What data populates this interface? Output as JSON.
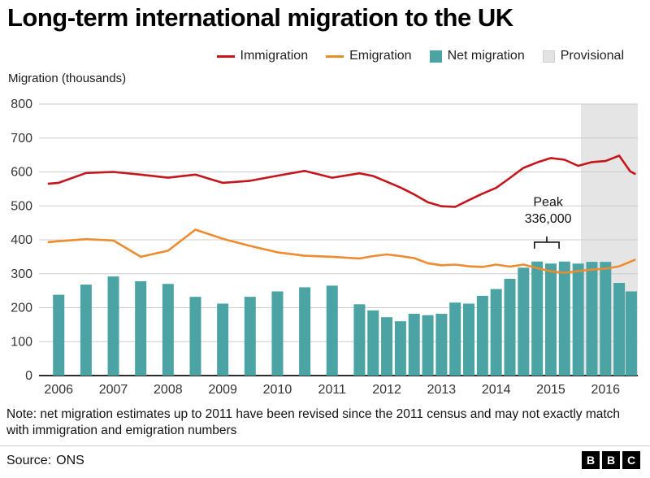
{
  "title": "Long-term international migration to the UK",
  "legend": {
    "items": [
      {
        "key": "immigration",
        "label": "Immigration",
        "swatch": "line",
        "color": "#c4161c"
      },
      {
        "key": "emigration",
        "label": "Emigration",
        "swatch": "line",
        "color": "#ee8b2e"
      },
      {
        "key": "net-migration",
        "label": "Net migration",
        "swatch": "box",
        "color": "#4ba3a3"
      },
      {
        "key": "provisional",
        "label": "Provisional",
        "swatch": "box",
        "color": "#e3e3e3"
      }
    ]
  },
  "chart_data": {
    "type": "combo",
    "title": "Long-term international migration to the UK",
    "ylabel": "Migration (thousands)",
    "xlabel": "",
    "ylim": [
      0,
      800
    ],
    "ytick_step": 100,
    "xticks": [
      2006,
      2007,
      2008,
      2009,
      2010,
      2011,
      2012,
      2013,
      2014,
      2015,
      2016
    ],
    "grid": true,
    "legend_position": "top",
    "provisional_start": 2015.55,
    "colors": {
      "grid": "#cccccc",
      "axis": "#2b2b2b",
      "provisional": "#e5e5e5"
    },
    "series": [
      {
        "name": "Net migration",
        "type": "bar",
        "color": "#4ba3a3",
        "points": [
          [
            2006.0,
            238
          ],
          [
            2006.5,
            268
          ],
          [
            2007.0,
            292
          ],
          [
            2007.5,
            278
          ],
          [
            2008.0,
            270
          ],
          [
            2008.5,
            232
          ],
          [
            2009.0,
            212
          ],
          [
            2009.5,
            232
          ],
          [
            2010.0,
            248
          ],
          [
            2010.5,
            260
          ],
          [
            2011.0,
            265
          ],
          [
            2011.5,
            210
          ],
          [
            2011.75,
            192
          ],
          [
            2012.0,
            172
          ],
          [
            2012.25,
            160
          ],
          [
            2012.5,
            182
          ],
          [
            2012.75,
            178
          ],
          [
            2013.0,
            182
          ],
          [
            2013.25,
            215
          ],
          [
            2013.5,
            212
          ],
          [
            2013.75,
            235
          ],
          [
            2014.0,
            255
          ],
          [
            2014.25,
            285
          ],
          [
            2014.5,
            318
          ],
          [
            2014.75,
            336
          ],
          [
            2015.0,
            330
          ],
          [
            2015.25,
            336
          ],
          [
            2015.5,
            330
          ],
          [
            2015.75,
            335
          ],
          [
            2016.0,
            335
          ],
          [
            2016.25,
            273
          ],
          [
            2016.47,
            248
          ]
        ]
      },
      {
        "name": "Immigration",
        "type": "line",
        "color": "#c4161c",
        "points": [
          [
            2005.8,
            565
          ],
          [
            2006.0,
            568
          ],
          [
            2006.5,
            597
          ],
          [
            2007.0,
            600
          ],
          [
            2007.5,
            592
          ],
          [
            2008.0,
            583
          ],
          [
            2008.5,
            592
          ],
          [
            2009.0,
            568
          ],
          [
            2009.5,
            574
          ],
          [
            2010.0,
            589
          ],
          [
            2010.5,
            603
          ],
          [
            2011.0,
            583
          ],
          [
            2011.5,
            596
          ],
          [
            2011.75,
            588
          ],
          [
            2012.0,
            571
          ],
          [
            2012.25,
            554
          ],
          [
            2012.5,
            534
          ],
          [
            2012.75,
            511
          ],
          [
            2013.0,
            499
          ],
          [
            2013.25,
            497
          ],
          [
            2013.5,
            517
          ],
          [
            2013.75,
            536
          ],
          [
            2014.0,
            553
          ],
          [
            2014.25,
            582
          ],
          [
            2014.5,
            612
          ],
          [
            2014.75,
            628
          ],
          [
            2015.0,
            641
          ],
          [
            2015.25,
            636
          ],
          [
            2015.5,
            618
          ],
          [
            2015.75,
            629
          ],
          [
            2016.0,
            632
          ],
          [
            2016.25,
            648
          ],
          [
            2016.45,
            602
          ],
          [
            2016.55,
            593
          ]
        ]
      },
      {
        "name": "Emigration",
        "type": "line",
        "color": "#ee8b2e",
        "points": [
          [
            2005.8,
            393
          ],
          [
            2006.0,
            396
          ],
          [
            2006.5,
            402
          ],
          [
            2007.0,
            398
          ],
          [
            2007.5,
            350
          ],
          [
            2008.0,
            368
          ],
          [
            2008.5,
            430
          ],
          [
            2009.0,
            403
          ],
          [
            2009.5,
            382
          ],
          [
            2010.0,
            363
          ],
          [
            2010.5,
            353
          ],
          [
            2011.0,
            350
          ],
          [
            2011.5,
            345
          ],
          [
            2011.75,
            352
          ],
          [
            2012.0,
            357
          ],
          [
            2012.25,
            352
          ],
          [
            2012.5,
            346
          ],
          [
            2012.75,
            331
          ],
          [
            2013.0,
            325
          ],
          [
            2013.25,
            327
          ],
          [
            2013.5,
            322
          ],
          [
            2013.75,
            320
          ],
          [
            2014.0,
            327
          ],
          [
            2014.25,
            321
          ],
          [
            2014.5,
            327
          ],
          [
            2014.75,
            317
          ],
          [
            2015.0,
            307
          ],
          [
            2015.25,
            303
          ],
          [
            2015.5,
            308
          ],
          [
            2015.75,
            312
          ],
          [
            2016.0,
            315
          ],
          [
            2016.25,
            322
          ],
          [
            2016.45,
            335
          ],
          [
            2016.55,
            342
          ]
        ]
      }
    ],
    "annotation": {
      "line1": "Peak",
      "line2": "336,000",
      "x": 2014.95,
      "text_y1": 500,
      "text_y2": 450,
      "bracket_x1": 2014.7,
      "bracket_x2": 2015.15,
      "bracket_y": 393
    }
  },
  "note": "Note: net migration estimates up to 2011 have been revised since the 2011 census and may not exactly match with immigration and emigration numbers",
  "source": {
    "label": "Source:",
    "value": "ONS"
  },
  "bbc_logo_letters": [
    "B",
    "B",
    "C"
  ]
}
